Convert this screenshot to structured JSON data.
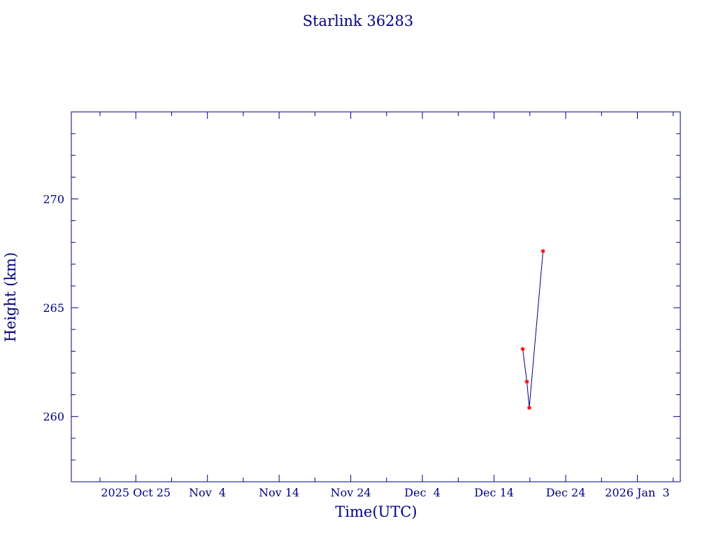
{
  "chart_data": {
    "type": "line",
    "title": "Starlink 36283",
    "xlabel": "Time(UTC)",
    "ylabel": "Height (km)",
    "x_tick_labels": [
      {
        "date": "2025-10-25",
        "label": "2025 Oct 25"
      },
      {
        "date": "2025-11-04",
        "label": "Nov  4"
      },
      {
        "date": "2025-11-14",
        "label": "Nov 14"
      },
      {
        "date": "2025-11-24",
        "label": "Nov 24"
      },
      {
        "date": "2025-12-04",
        "label": "Dec  4"
      },
      {
        "date": "2025-12-14",
        "label": "Dec 14"
      },
      {
        "date": "2025-12-24",
        "label": "Dec 24"
      },
      {
        "date": "2026-01-03",
        "label": "2026 Jan  3"
      }
    ],
    "y_ticks": [
      260,
      265,
      270
    ],
    "xlim": [
      "2025-10-16",
      "2026-01-09"
    ],
    "ylim": [
      257,
      274
    ],
    "grid": false,
    "series": [
      {
        "line_color": "#000080",
        "marker_color": "#ff0000",
        "points": [
          {
            "x": "2025-12-18 00:00",
            "y": 263.1
          },
          {
            "x": "2025-12-18 14:00",
            "y": 261.6
          },
          {
            "x": "2025-12-18 22:00",
            "y": 260.4
          },
          {
            "x": "2025-12-20 20:00",
            "y": 267.6
          }
        ]
      }
    ]
  }
}
